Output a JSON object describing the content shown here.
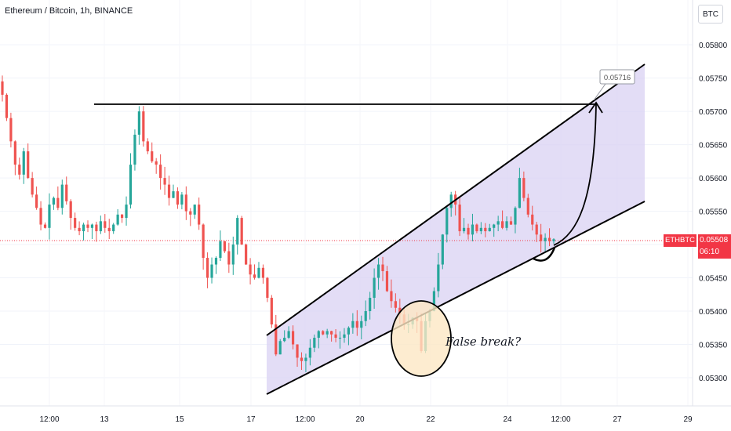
{
  "header": {
    "symbol_title": "Ethereum / Bitcoin, 1h, BINANCE",
    "currency_button": "BTC"
  },
  "price_label": {
    "pair": "ETHBTC",
    "last_price": "0.05508",
    "countdown": "06:10"
  },
  "colors": {
    "up": "#26a69a",
    "down": "#ef5350",
    "channel_fill": "#d9d2f3",
    "price_line": "#f23645",
    "annotation_fill": "#fde7c4"
  },
  "chart_data": {
    "type": "candlestick",
    "x_tick_labels": [
      "12:00",
      "13",
      "15",
      "17",
      "12:00",
      "20",
      "22",
      "24",
      "12:00",
      "27",
      "29"
    ],
    "y_tick_labels": [
      "0.05800",
      "0.05750",
      "0.05700",
      "0.05650",
      "0.05600",
      "0.05550",
      "0.05500",
      "0.05450",
      "0.05400",
      "0.05350",
      "0.05300"
    ],
    "ylim": [
      0.05267,
      0.05832
    ],
    "series": [
      {
        "values": [
          0.05725,
          0.0569,
          0.05655,
          0.0562,
          0.05605,
          0.0564,
          0.056,
          0.05575,
          0.05555,
          0.0553,
          0.05525,
          0.0556,
          0.0557,
          0.05555,
          0.0559,
          0.05565,
          0.0554,
          0.05525,
          0.0552,
          0.0553,
          0.05525,
          0.0553,
          0.0552,
          0.05535,
          0.05525,
          0.0552,
          0.0553,
          0.05545,
          0.0554,
          0.0556,
          0.0562,
          0.05665,
          0.057,
          0.05655,
          0.0564,
          0.05625,
          0.0562,
          0.056,
          0.0559,
          0.0557,
          0.0558,
          0.0556,
          0.05575,
          0.0555,
          0.05545,
          0.0556,
          0.0553,
          0.0548,
          0.0545,
          0.0547,
          0.0548,
          0.05505,
          0.0549,
          0.0547,
          0.055,
          0.0554,
          0.055,
          0.0547,
          0.05455,
          0.0545,
          0.05465,
          0.0545,
          0.0542,
          0.0538,
          0.05335,
          0.05355,
          0.0536,
          0.0537,
          0.0535,
          0.0533,
          0.05325,
          0.0533,
          0.05345,
          0.0536,
          0.0537,
          0.05365,
          0.0537,
          0.05365,
          0.0536,
          0.0536,
          0.05365,
          0.05375,
          0.05385,
          0.05375,
          0.05385,
          0.054,
          0.0542,
          0.0545,
          0.0547,
          0.0546,
          0.0543,
          0.05415,
          0.05405,
          0.05395,
          0.0538,
          0.0538,
          0.0539,
          0.05385,
          0.0534,
          0.05385,
          0.054,
          0.0543,
          0.0547,
          0.05515,
          0.05555,
          0.05575,
          0.0556,
          0.0552,
          0.05525,
          0.05515,
          0.0553,
          0.0552,
          0.05525,
          0.0552,
          0.05525,
          0.0553,
          0.05535,
          0.05525,
          0.05535,
          0.0553,
          0.05555,
          0.056,
          0.0557,
          0.05545,
          0.0553,
          0.05515,
          0.05505,
          0.0551,
          0.05505,
          0.05508
        ]
      }
    ],
    "horizontal_line": 0.05706,
    "target_label": "0.05716",
    "annotation": "False break?"
  }
}
